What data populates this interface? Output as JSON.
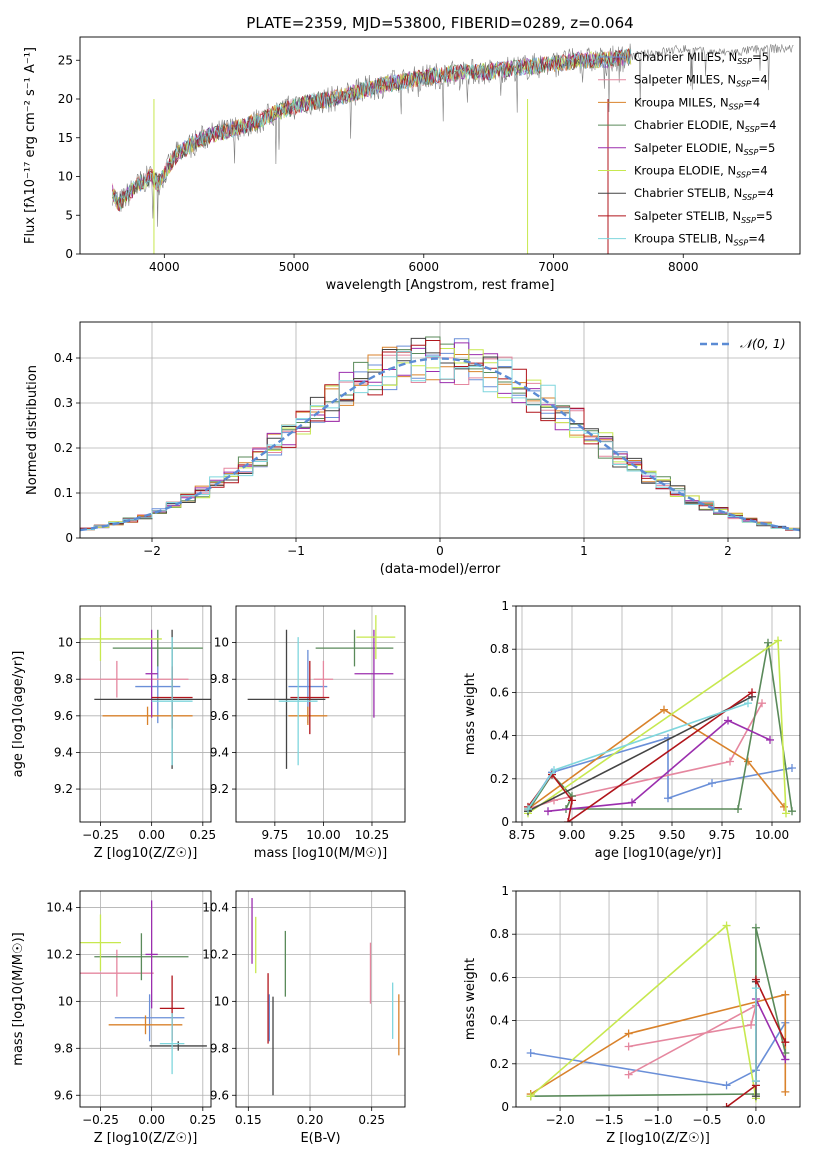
{
  "title": "PLATE=2359, MJD=53800, FIBERID=0289, z=0.064",
  "models": [
    {
      "name": "Chabrier MILES, N_SSP=5",
      "label_main": "Chabrier MILES, N",
      "label_n": "=5",
      "color": "#6a8fd8"
    },
    {
      "name": "Salpeter MILES, N_SSP=4",
      "label_main": "Salpeter MILES, N",
      "label_n": "=4",
      "color": "#e5879f"
    },
    {
      "name": "Kroupa MILES, N_SSP=4",
      "label_main": "Kroupa MILES, N",
      "label_n": "=4",
      "color": "#d9822b"
    },
    {
      "name": "Chabrier ELODIE, N_SSP=4",
      "label_main": "Chabrier ELODIE, N",
      "label_n": "=4",
      "color": "#5a8a5a"
    },
    {
      "name": "Salpeter ELODIE, N_SSP=5",
      "label_main": "Salpeter ELODIE, N",
      "label_n": "=5",
      "color": "#9b2fae"
    },
    {
      "name": "Kroupa ELODIE, N_SSP=4",
      "label_main": "Kroupa ELODIE, N",
      "label_n": "=4",
      "color": "#c7e84f"
    },
    {
      "name": "Chabrier STELIB, N_SSP=4",
      "label_main": "Chabrier STELIB, N",
      "label_n": "=4",
      "color": "#444444"
    },
    {
      "name": "Salpeter STELIB, N_SSP=5",
      "label_main": "Salpeter STELIB, N",
      "label_n": "=5",
      "color": "#b0151b"
    },
    {
      "name": "Kroupa STELIB, N_SSP=4",
      "label_main": "Kroupa STELIB, N",
      "label_n": "=4",
      "color": "#7fd6dd"
    }
  ],
  "chart_data": [
    {
      "id": "spectrum",
      "type": "line",
      "xlabel": "wavelength [Angstrom, rest frame]",
      "ylabel": "Flux [fλ10⁻¹⁷ erg cm⁻² s⁻¹ A⁻¹]",
      "xlim": [
        3350,
        8900
      ],
      "ylim": [
        0,
        28
      ],
      "xticks": [
        4000,
        5000,
        6000,
        7000,
        8000
      ],
      "yticks": [
        0,
        5,
        10,
        15,
        20,
        25
      ],
      "grid": false,
      "legend": "top-right",
      "continuum": [
        [
          3600,
          8
        ],
        [
          3650,
          6.5
        ],
        [
          3800,
          9
        ],
        [
          3900,
          10
        ],
        [
          3950,
          9
        ],
        [
          4100,
          13
        ],
        [
          4300,
          15
        ],
        [
          4500,
          16
        ],
        [
          4700,
          17
        ],
        [
          4900,
          18.5
        ],
        [
          5100,
          19.5
        ],
        [
          5300,
          20
        ],
        [
          5600,
          21.5
        ],
        [
          5900,
          22.5
        ],
        [
          6100,
          23
        ],
        [
          6300,
          23.5
        ],
        [
          6500,
          23.5
        ],
        [
          6700,
          24
        ],
        [
          7000,
          24.5
        ],
        [
          7200,
          25
        ],
        [
          7400,
          25
        ],
        [
          7600,
          25.5
        ],
        [
          7800,
          26
        ],
        [
          8000,
          26.5
        ],
        [
          8200,
          26
        ],
        [
          8400,
          26
        ],
        [
          8600,
          26.5
        ]
      ],
      "data_limits": {
        "xmin": 3600,
        "xmax_full": 8850,
        "xmax_fit": 7600
      }
    },
    {
      "id": "residuals",
      "type": "step",
      "xlabel": "(data-model)/error",
      "ylabel": "Normed distribution",
      "xlim": [
        -2.5,
        2.5
      ],
      "ylim": [
        0,
        0.48
      ],
      "xticks": [
        -2,
        -1,
        0,
        1,
        2
      ],
      "xtick_labels": [
        "−2",
        "−1",
        "0",
        "1",
        "2"
      ],
      "yticks": [
        0,
        0.1,
        0.2,
        0.3,
        0.4
      ],
      "grid": true,
      "legend": "top-right",
      "reference": {
        "label": "𝒩(0, 1)",
        "mu": 0,
        "sigma": 1,
        "color": "#5b8bd4"
      },
      "bin_width": 0.1
    },
    {
      "id": "age-vs-Z",
      "type": "errorbar",
      "xlabel": "Z [log10(Z/Z☉)]",
      "ylabel": "age  [log10(age/yr)]",
      "xlim": [
        -0.35,
        0.29
      ],
      "ylim": [
        9.02,
        10.2
      ],
      "xticks": [
        -0.25,
        0,
        0.25
      ],
      "xtick_labels": [
        "−0.25",
        "0.00",
        "0.25"
      ],
      "yticks": [
        9.2,
        9.4,
        9.6,
        9.8,
        10.0
      ],
      "grid": true,
      "points": [
        {
          "x": 0.03,
          "y": 9.76,
          "xerr": 0.11,
          "yerr": 0.2
        },
        {
          "x": -0.17,
          "y": 9.8,
          "xerr": 0.35,
          "yerr": 0.1
        },
        {
          "x": -0.02,
          "y": 9.6,
          "xerr": 0.22,
          "yerr": 0.05
        },
        {
          "x": 0.03,
          "y": 9.97,
          "xerr": 0.22,
          "yerr": 0.1
        },
        {
          "x": 0.0,
          "y": 9.83,
          "xerr": 0.03,
          "yerr": 0.24
        },
        {
          "x": -0.25,
          "y": 10.02,
          "xerr": 0.3,
          "yerr": 0.12
        },
        {
          "x": 0.1,
          "y": 9.69,
          "xerr": 0.38,
          "yerr": 0.38
        },
        {
          "x": 0.1,
          "y": 9.7,
          "xerr": 0.1,
          "yerr": 0.17
        },
        {
          "x": 0.1,
          "y": 9.68,
          "xerr": 0.1,
          "yerr": 0.35
        }
      ]
    },
    {
      "id": "age-vs-mass",
      "type": "errorbar",
      "xlabel": "mass [log10(M/M☉)]",
      "ylabel": "",
      "xlim": [
        9.55,
        10.42
      ],
      "ylim": [
        9.02,
        10.2
      ],
      "xticks": [
        9.75,
        10.0,
        10.25
      ],
      "xtick_labels": [
        "9.75",
        "10.00",
        "10.25"
      ],
      "yticks": [
        9.2,
        9.4,
        9.6,
        9.8,
        10.0
      ],
      "grid": true,
      "points": [
        {
          "x": 9.92,
          "y": 9.76,
          "xerr": 0.1,
          "yerr": 0.2
        },
        {
          "x": 10.0,
          "y": 9.8,
          "xerr": 0.05,
          "yerr": 0.1
        },
        {
          "x": 9.92,
          "y": 9.6,
          "xerr": 0.1,
          "yerr": 0.05
        },
        {
          "x": 10.16,
          "y": 9.97,
          "xerr": 0.2,
          "yerr": 0.1
        },
        {
          "x": 10.26,
          "y": 9.83,
          "xerr": 0.1,
          "yerr": 0.24
        },
        {
          "x": 10.27,
          "y": 10.03,
          "xerr": 0.1,
          "yerr": 0.12
        },
        {
          "x": 9.81,
          "y": 9.69,
          "xerr": 0.2,
          "yerr": 0.38
        },
        {
          "x": 9.93,
          "y": 9.7,
          "xerr": 0.1,
          "yerr": 0.2
        },
        {
          "x": 9.87,
          "y": 9.68,
          "xerr": 0.1,
          "yerr": 0.35
        }
      ]
    },
    {
      "id": "weight-vs-age",
      "type": "line",
      "xlabel": "age  [log10(age/yr)]",
      "ylabel": "mass weight",
      "xlim": [
        8.72,
        10.14
      ],
      "ylim": [
        0,
        1
      ],
      "xticks": [
        8.75,
        9.0,
        9.25,
        9.5,
        9.75,
        10.0
      ],
      "xtick_labels": [
        "8.75",
        "9.00",
        "9.25",
        "9.50",
        "9.75",
        "10.00"
      ],
      "yticks": [
        0,
        0.2,
        0.4,
        0.6,
        0.8,
        1.0
      ],
      "grid": true,
      "series": [
        {
          "points": [
            [
              8.78,
              0.06
            ],
            [
              8.9,
              0.23
            ],
            [
              9.48,
              0.39
            ],
            [
              9.48,
              0.11
            ],
            [
              9.7,
              0.18
            ],
            [
              10.1,
              0.25
            ]
          ]
        },
        {
          "points": [
            [
              8.78,
              0.06
            ],
            [
              8.91,
              0.1
            ],
            [
              9.79,
              0.28
            ],
            [
              9.95,
              0.55
            ]
          ]
        },
        {
          "points": [
            [
              8.78,
              0.06
            ],
            [
              9.46,
              0.52
            ],
            [
              9.88,
              0.28
            ],
            [
              10.06,
              0.07
            ]
          ]
        },
        {
          "points": [
            [
              8.78,
              0.05
            ],
            [
              8.9,
              0.22
            ],
            [
              9.0,
              0.12
            ],
            [
              8.97,
              0.06
            ],
            [
              9.83,
              0.06
            ],
            [
              9.98,
              0.83
            ],
            [
              10.1,
              0.05
            ]
          ]
        },
        {
          "points": [
            [
              8.88,
              0.05
            ],
            [
              9.3,
              0.09
            ],
            [
              9.78,
              0.47
            ],
            [
              9.99,
              0.38
            ]
          ]
        },
        {
          "points": [
            [
              8.78,
              0.04
            ],
            [
              10.03,
              0.84
            ],
            [
              10.07,
              0.04
            ]
          ]
        },
        {
          "points": [
            [
              8.78,
              0.05
            ],
            [
              9.9,
              0.58
            ]
          ]
        },
        {
          "points": [
            [
              8.78,
              0.07
            ],
            [
              8.9,
              0.22
            ],
            [
              9.0,
              0.1
            ],
            [
              8.98,
              0.0
            ],
            [
              9.9,
              0.6
            ]
          ]
        },
        {
          "points": [
            [
              8.78,
              0.06
            ],
            [
              8.91,
              0.24
            ],
            [
              9.88,
              0.55
            ]
          ]
        }
      ]
    },
    {
      "id": "mass-vs-Z",
      "type": "errorbar",
      "xlabel": "Z [log10(Z/Z☉)]",
      "ylabel": "mass [log10(M/M☉)]",
      "xlim": [
        -0.35,
        0.29
      ],
      "ylim": [
        9.55,
        10.47
      ],
      "xticks": [
        -0.25,
        0,
        0.25
      ],
      "xtick_labels": [
        "−0.25",
        "0.00",
        "0.25"
      ],
      "yticks": [
        9.6,
        9.8,
        10.0,
        10.2,
        10.4
      ],
      "grid": true,
      "points": [
        {
          "x": -0.01,
          "y": 9.93,
          "xerr": 0.17,
          "yerr": 0.1
        },
        {
          "x": -0.17,
          "y": 10.12,
          "xerr": 0.18,
          "yerr": 0.1
        },
        {
          "x": -0.03,
          "y": 9.9,
          "xerr": 0.18,
          "yerr": 0.04
        },
        {
          "x": -0.05,
          "y": 10.19,
          "xerr": 0.23,
          "yerr": 0.1
        },
        {
          "x": 0.0,
          "y": 10.2,
          "xerr": 0.03,
          "yerr": 0.23
        },
        {
          "x": -0.25,
          "y": 10.25,
          "xerr": 0.1,
          "yerr": 0.12
        },
        {
          "x": 0.13,
          "y": 9.81,
          "xerr": 0.14,
          "yerr": 0.02
        },
        {
          "x": 0.1,
          "y": 9.97,
          "xerr": 0.06,
          "yerr": 0.14
        },
        {
          "x": 0.1,
          "y": 9.82,
          "xerr": 0.06,
          "yerr": 0.13
        }
      ]
    },
    {
      "id": "mass-vs-ebv",
      "type": "errorbar",
      "xlabel": "E(B-V)",
      "ylabel": "",
      "xlim": [
        0.14,
        0.277
      ],
      "ylim": [
        9.55,
        10.47
      ],
      "xticks": [
        0.15,
        0.2,
        0.25
      ],
      "xtick_labels": [
        "0.15",
        "0.20",
        "0.25"
      ],
      "yticks": [
        9.6,
        9.8,
        10.0,
        10.2,
        10.4
      ],
      "grid": true,
      "points": [
        {
          "x": 0.167,
          "y": 9.93,
          "xerr": 0.0,
          "yerr": 0.1
        },
        {
          "x": 0.249,
          "y": 10.12,
          "xerr": 0.0,
          "yerr": 0.13
        },
        {
          "x": 0.272,
          "y": 9.9,
          "xerr": 0.0,
          "yerr": 0.13
        },
        {
          "x": 0.18,
          "y": 10.16,
          "xerr": 0.0,
          "yerr": 0.14
        },
        {
          "x": 0.153,
          "y": 10.3,
          "xerr": 0.0,
          "yerr": 0.14
        },
        {
          "x": 0.156,
          "y": 10.24,
          "xerr": 0.0,
          "yerr": 0.12
        },
        {
          "x": 0.17,
          "y": 9.81,
          "xerr": 0.0,
          "yerr": 0.21
        },
        {
          "x": 0.166,
          "y": 9.97,
          "xerr": 0.0,
          "yerr": 0.15
        },
        {
          "x": 0.267,
          "y": 9.96,
          "xerr": 0.0,
          "yerr": 0.12
        }
      ]
    },
    {
      "id": "weight-vs-Z",
      "type": "line",
      "xlabel": "Z [log10(Z/Z☉)]",
      "ylabel": "mass weight",
      "xlim": [
        -2.45,
        0.45
      ],
      "ylim": [
        0,
        1
      ],
      "xticks": [
        -2.0,
        -1.5,
        -1.0,
        -0.5,
        0.0
      ],
      "xtick_labels": [
        "−2.0",
        "−1.5",
        "−1.0",
        "−0.5",
        "0.0"
      ],
      "yticks": [
        0,
        0.2,
        0.4,
        0.6,
        0.8,
        1.0
      ],
      "grid": true,
      "series": [
        {
          "points": [
            [
              -2.3,
              0.25
            ],
            [
              -0.3,
              0.1
            ],
            [
              0.0,
              0.17
            ],
            [
              0.3,
              0.39
            ],
            [
              0.3,
              0.22
            ]
          ]
        },
        {
          "points": [
            [
              -1.3,
              0.15
            ],
            [
              0.0,
              0.47
            ],
            [
              -0.05,
              0.38
            ],
            [
              -1.3,
              0.28
            ]
          ]
        },
        {
          "points": [
            [
              -2.3,
              0.06
            ],
            [
              -1.3,
              0.34
            ],
            [
              0.3,
              0.52
            ],
            [
              0.3,
              0.07
            ]
          ]
        },
        {
          "points": [
            [
              -2.3,
              0.05
            ],
            [
              0.0,
              0.06
            ],
            [
              0.0,
              0.83
            ],
            [
              0.3,
              0.25
            ]
          ]
        },
        {
          "points": [
            [
              0.0,
              0.12
            ],
            [
              0.0,
              0.5
            ],
            [
              0.3,
              0.22
            ]
          ]
        },
        {
          "points": [
            [
              -2.3,
              0.05
            ],
            [
              -0.3,
              0.84
            ],
            [
              0.0,
              0.04
            ]
          ]
        },
        {
          "points": [
            [
              0.0,
              0.05
            ],
            [
              0.0,
              0.58
            ]
          ]
        },
        {
          "points": [
            [
              -0.3,
              0.0
            ],
            [
              0.0,
              0.1
            ],
            [
              0.0,
              0.59
            ],
            [
              0.3,
              0.3
            ]
          ]
        },
        {
          "points": [
            [
              0.0,
              0.12
            ],
            [
              0.0,
              0.55
            ]
          ]
        }
      ]
    }
  ]
}
